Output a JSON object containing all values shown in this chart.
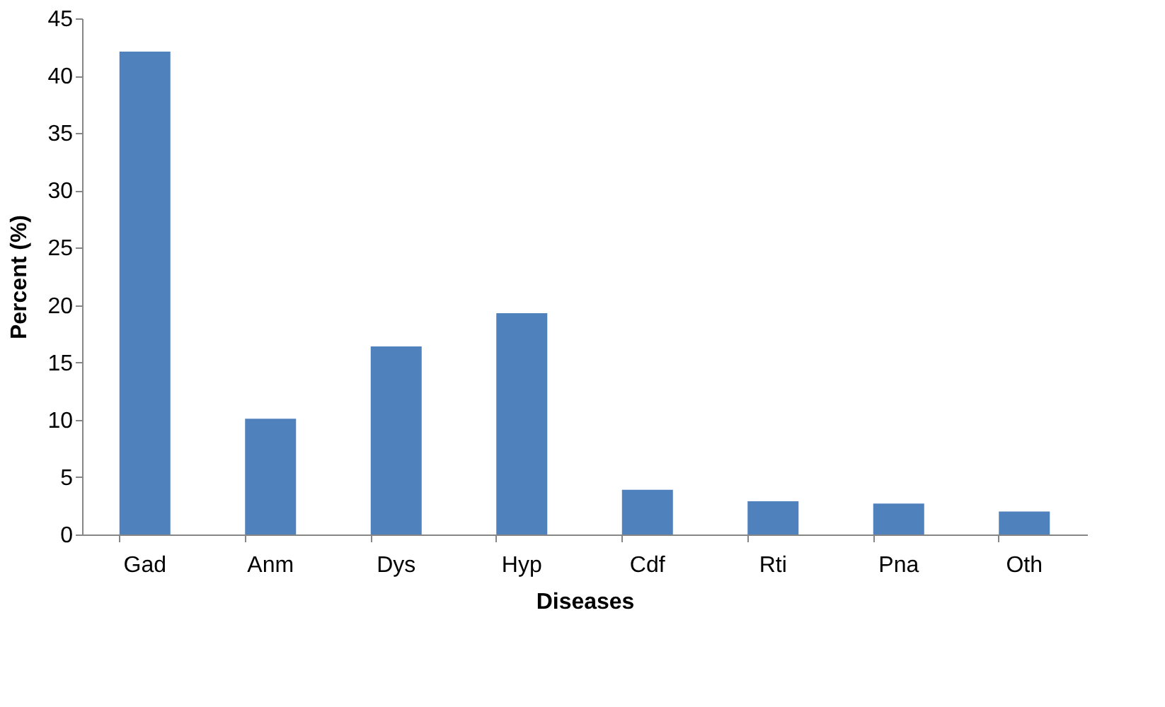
{
  "chart_data": {
    "type": "bar",
    "xlabel": "Diseases",
    "ylabel": "Percent (%)",
    "categories": [
      "Gad",
      "Anm",
      "Dys",
      "Hyp",
      "Cdf",
      "Rti",
      "Pna",
      "Oth"
    ],
    "values": [
      42.1,
      10.1,
      16.4,
      19.3,
      3.9,
      2.9,
      2.7,
      2.0
    ],
    "color": "#4f81bd",
    "ylim": [
      0,
      45
    ],
    "yticks": [
      0,
      5,
      10,
      15,
      20,
      25,
      30,
      35,
      40,
      45
    ],
    "grid": false
  }
}
